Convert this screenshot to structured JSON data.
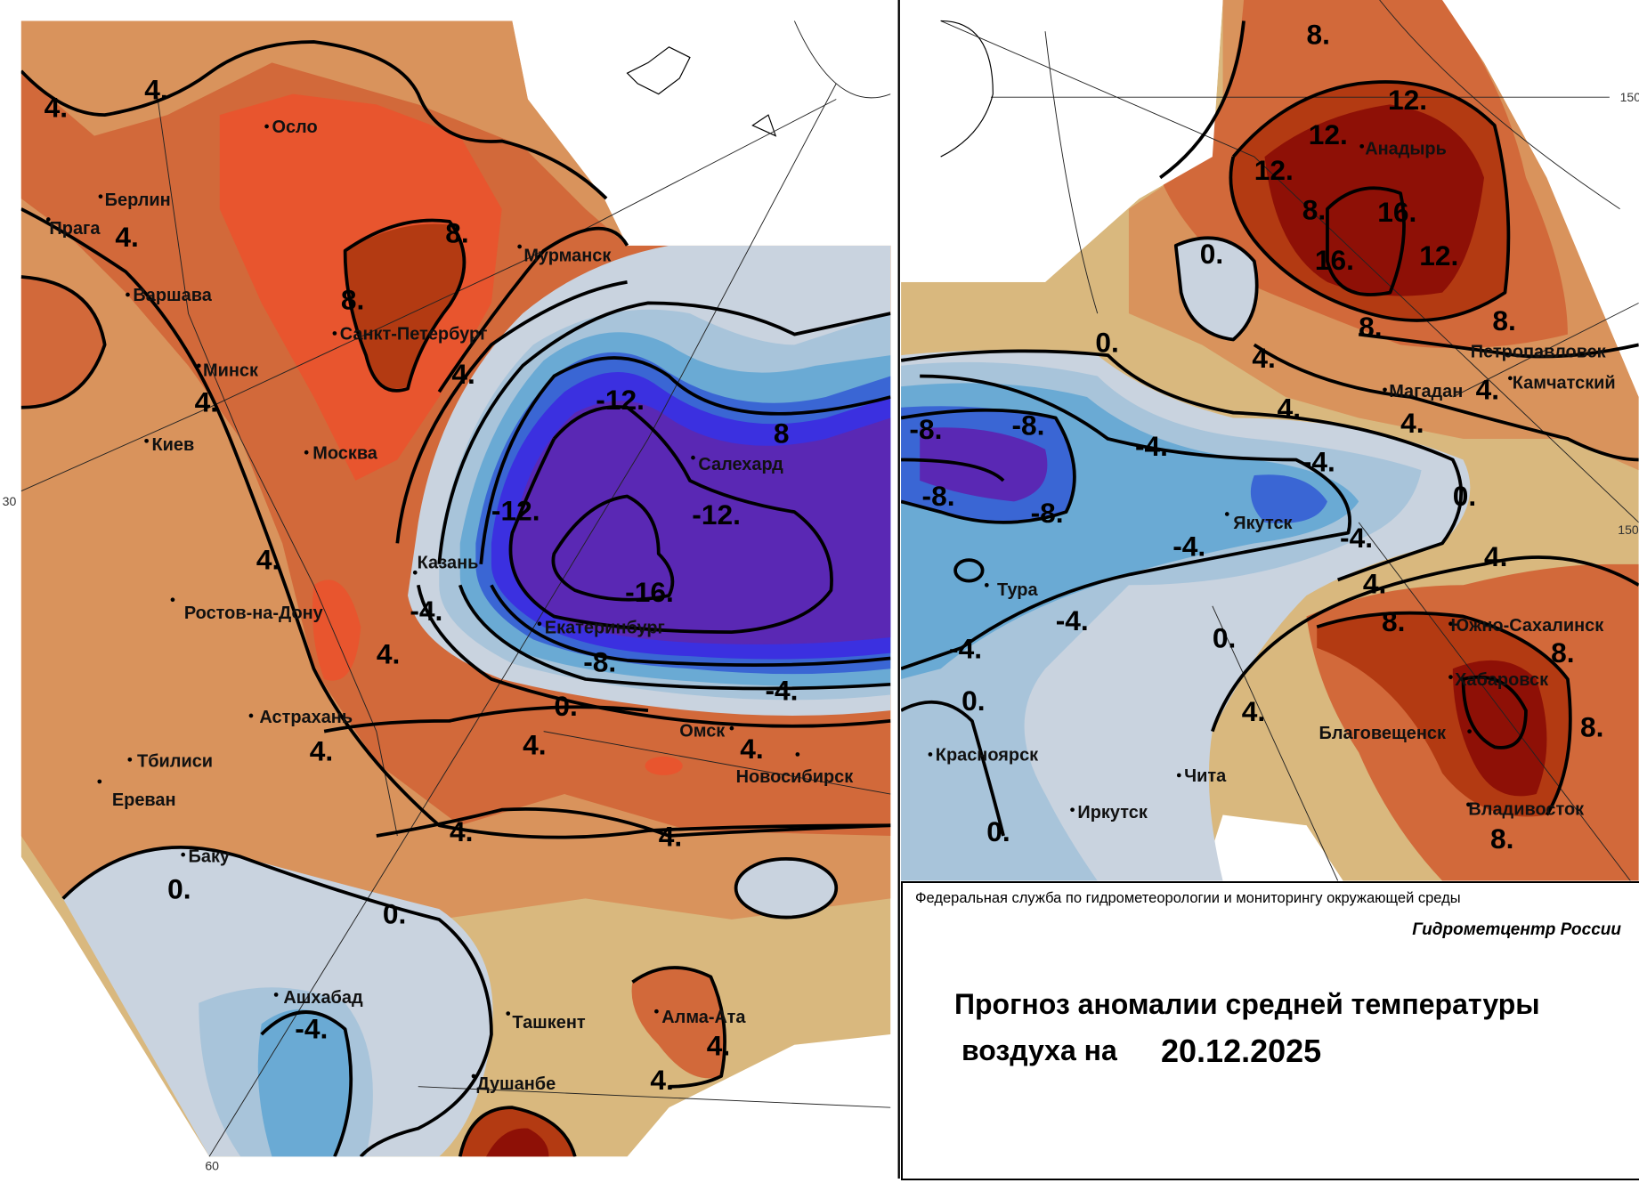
{
  "legend": {
    "agency": "Федеральная служба по гидрометеорологии и мониторингу окружающей среды",
    "center": "Гидрометцентр России",
    "title_line1": "Прогноз аномалии средней температуры",
    "title_line2": "воздуха на",
    "date": "20.12.2025"
  },
  "graticule_labels": [
    "30",
    "60",
    "150",
    "150"
  ],
  "cities_left": [
    "Осло",
    "Берлин",
    "Прага",
    "Варшава",
    "Минск",
    "Киев",
    "Москва",
    "Санкт-Петербург",
    "Мурманск",
    "Салехард",
    "Казань",
    "Екатеринбург",
    "Ростов-на-Дону",
    "Астрахань",
    "Тбилиси",
    "Ереван",
    "Баку",
    "Омск",
    "Новосибирск",
    "Ашхабад",
    "Ташкент",
    "Алма-Ата",
    "Душанбе"
  ],
  "cities_right": [
    "Анадырь",
    "Петропавловск",
    "Камчатский",
    "Магадан",
    "Якутск",
    "Тура",
    "Южно-Сахалинск",
    "Хабаровск",
    "Благовещенск",
    "Красноярск",
    "Чита",
    "Иркутск",
    "Владивосток"
  ],
  "contour_labels_left": [
    "4.",
    "4.",
    "4.",
    "8.",
    "8.",
    "4.",
    "4.",
    "4.",
    "4.",
    "-12.",
    "-12.",
    "-12.",
    "-16.",
    "8",
    "-4.",
    "-8.",
    "-4.",
    "0.",
    "4.",
    "4.",
    "4.",
    "4.",
    "0.",
    "0.",
    "-4.",
    "4.",
    "4.",
    "4."
  ],
  "contour_labels_right": [
    "8.",
    "12.",
    "12.",
    "12.",
    "16.",
    "16.",
    "12.",
    "0.",
    "0.",
    "8.",
    "8.",
    "4.",
    "4.",
    "4.",
    "4.",
    "-8.",
    "-8.",
    "-8.",
    "-8.",
    "-4.",
    "-4.",
    "-4.",
    "-4.",
    "-4.",
    "0.",
    "4.",
    "4.",
    "8.",
    "8.",
    "8.",
    "8.",
    "4.",
    "0.",
    "0.",
    "-4.",
    "8."
  ],
  "colors": {
    "neg16": "#5a28b4",
    "neg12": "#4a3adf",
    "neg8": "#3a66d4",
    "neg4": "#6aaad4",
    "neg2": "#a8c4da",
    "zero": "#c9d3df",
    "pos0": "#d9b87e",
    "pos2": "#d9935c",
    "pos4": "#d2693a",
    "pos6": "#e8552e",
    "pos8": "#b33a12",
    "pos12": "#8e1006"
  }
}
